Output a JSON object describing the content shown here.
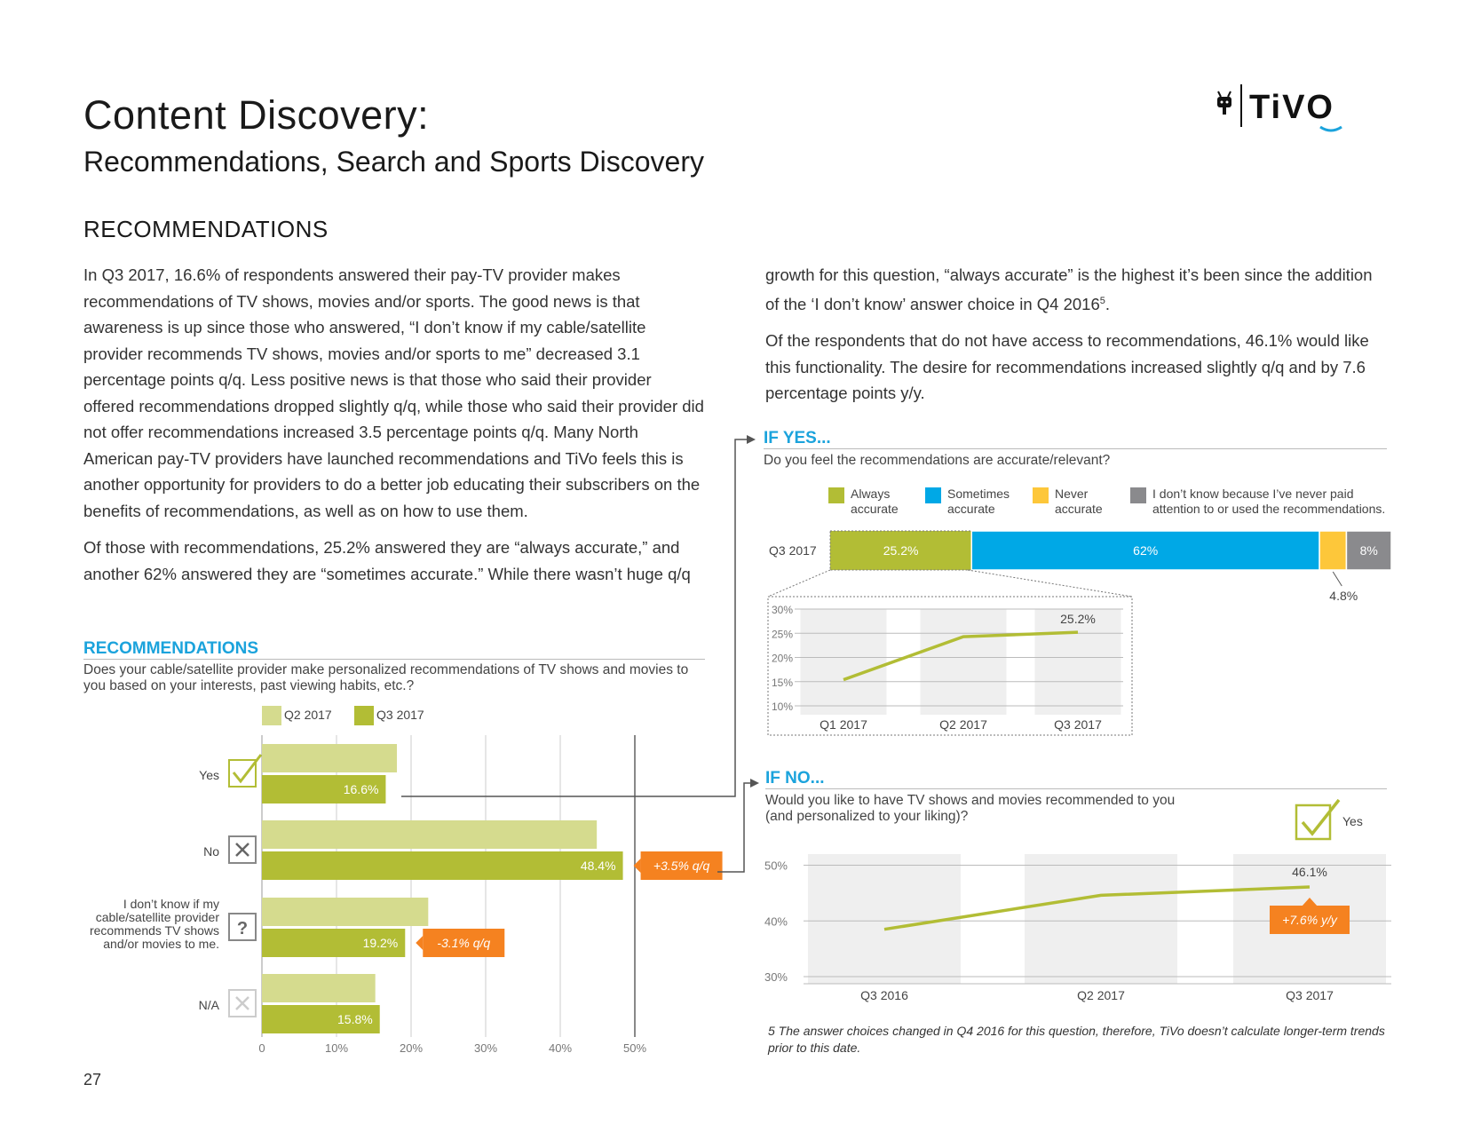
{
  "header": {
    "title": "Content Discovery:",
    "subtitle": "Recommendations, Search and Sports Discovery",
    "logo_text": "TiVO"
  },
  "section_title": "RECOMMENDATIONS",
  "body": {
    "left_p1": "In Q3 2017, 16.6% of respondents answered their pay-TV provider makes recommendations of TV shows, movies and/or sports. The good news is that awareness is up since those who answered, “I don’t know if my cable/satellite provider recommends TV shows, movies and/or sports to me” decreased 3.1 percentage points q/q. Less positive news is that those who said their provider offered recommendations dropped slightly q/q, while those who said their provider did not offer recommendations increased 3.5 percentage points q/q. Many North American pay-TV providers have launched recommendations and TiVo feels this is another opportunity for providers to do a better job educating their subscribers on the benefits of recommendations, as well as on how to use them.",
    "left_p2": "Of those with recommendations, 25.2% answered they are “always accurate,” and another 62% answered they are “sometimes accurate.” While there wasn’t huge q/q",
    "right_p1": "growth for this question, “always accurate” is the highest it’s been since the addition of the ‘I don’t know’ answer choice in Q4 2016",
    "right_p1_sup": "5",
    "right_p1_end": ".",
    "right_p2": "Of the respondents that do not have access to recommendations, 46.1% would like this functionality. The desire for recommendations increased slightly q/q and by 7.6 percentage points y/y."
  },
  "colors": {
    "olive": "#b2bd35",
    "light_olive": "#d5db8e",
    "blue": "#00a8e6",
    "yellow": "#fdc73a",
    "gray": "#8a8a8d",
    "orange": "#f58220",
    "accent": "#1ba3dc"
  },
  "rec_chart": {
    "heading": "RECOMMENDATIONS",
    "question": "Does your cable/satellite provider make personalized recommendations of TV shows and movies to you based on your interests, past viewing habits, etc.?",
    "chart_data": {
      "type": "bar",
      "orientation": "horizontal",
      "legend": [
        "Q2 2017",
        "Q3 2017"
      ],
      "categories": [
        "Yes",
        "No",
        "I don’t know if my cable/satellite provider recommends TV shows and/or movies to me.",
        "N/A"
      ],
      "category_lines": [
        [
          "Yes"
        ],
        [
          "No"
        ],
        [
          "I don’t know if my",
          "cable/satellite provider",
          "recommends TV shows",
          "and/or movies to me."
        ],
        [
          "N/A"
        ]
      ],
      "icons": [
        "check-icon",
        "x-icon",
        "question-icon",
        "x-icon"
      ],
      "series": [
        {
          "name": "Q2 2017",
          "values": [
            18.1,
            44.9,
            22.3,
            15.2
          ]
        },
        {
          "name": "Q3 2017",
          "values": [
            16.6,
            48.4,
            19.2,
            15.8
          ]
        }
      ],
      "value_labels": [
        "16.6%",
        "48.4%",
        "19.2%",
        "15.8%"
      ],
      "callouts": [
        null,
        "+3.5% q/q",
        "-3.1% q/q",
        null
      ],
      "x_ticks": [
        "0",
        "10%",
        "20%",
        "30%",
        "40%",
        "50%"
      ],
      "xlim": [
        0,
        50
      ]
    }
  },
  "yes_chart": {
    "heading": "IF YES...",
    "question": "Do you feel the recommendations are accurate/relevant?",
    "legend": [
      {
        "lines": [
          "Always",
          "accurate"
        ]
      },
      {
        "lines": [
          "Sometimes",
          "accurate"
        ]
      },
      {
        "lines": [
          "Never",
          "accurate"
        ]
      },
      {
        "lines": [
          "I don’t know because I’ve never paid",
          "attention to or used the recommendations."
        ]
      }
    ],
    "chart_data": {
      "type": "bar",
      "stacked": true,
      "category": "Q3 2017",
      "segments": [
        {
          "name": "Always accurate",
          "value": 25.2,
          "label": "25.2%"
        },
        {
          "name": "Sometimes accurate",
          "value": 62,
          "label": "62%"
        },
        {
          "name": "Never accurate",
          "value": 4.8,
          "label": "4.8%"
        },
        {
          "name": "I don’t know because I’ve never paid attention to or used the recommendations.",
          "value": 8,
          "label": "8%"
        }
      ]
    },
    "trend": {
      "type": "line",
      "x": [
        "Q1 2017",
        "Q2 2017",
        "Q3 2017"
      ],
      "values": [
        15.4,
        24.3,
        25.2
      ],
      "end_label": "25.2%",
      "y_ticks": [
        "30%",
        "25%",
        "20%",
        "15%",
        "10%"
      ],
      "ylim": [
        10,
        30
      ]
    }
  },
  "no_chart": {
    "heading": "IF NO...",
    "question_lines": [
      "Would you like to have TV shows and movies recommended to you",
      "(and personalized to your liking)?"
    ],
    "yes_label": "Yes",
    "chart_data": {
      "type": "line",
      "x": [
        "Q3 2016",
        "Q2 2017",
        "Q3 2017"
      ],
      "values": [
        38.5,
        44.6,
        46.1
      ],
      "end_label": "46.1%",
      "callout": "+7.6% y/y",
      "y_ticks": [
        "50%",
        "40%",
        "30%"
      ],
      "ylim": [
        30,
        52
      ]
    }
  },
  "footnote": "5  The answer choices changed in Q4 2016 for this question, therefore, TiVo doesn’t calculate longer-term trends prior to this date.",
  "page_number": "27"
}
